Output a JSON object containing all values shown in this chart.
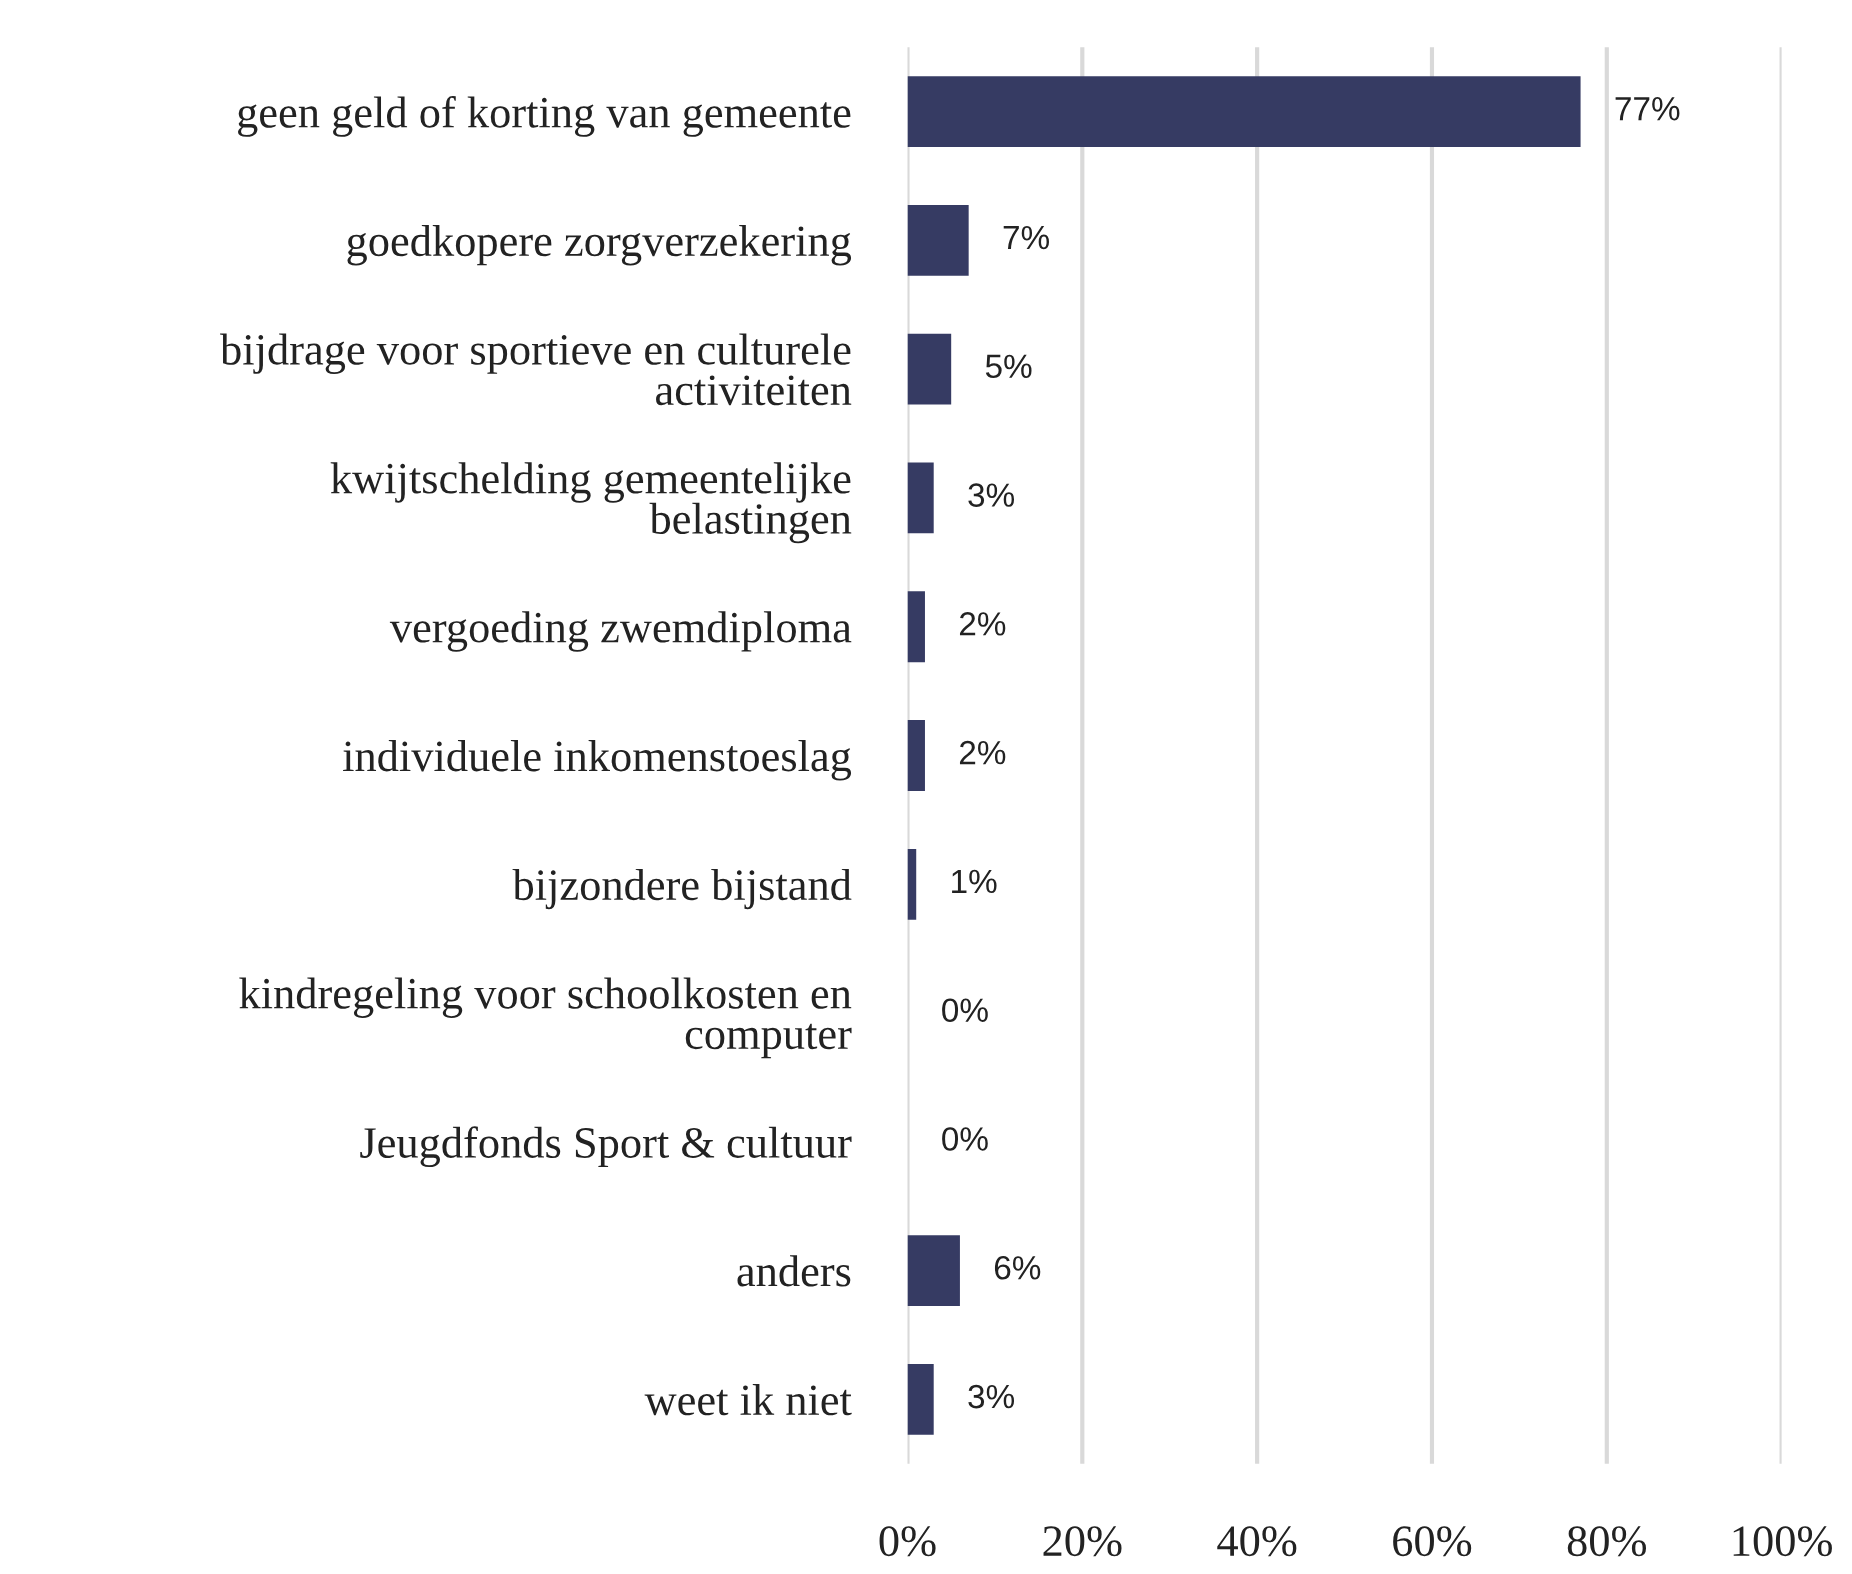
{
  "chart_data": {
    "type": "bar",
    "orientation": "horizontal",
    "categories": [
      "geen geld of korting van gemeente",
      "goedkopere zorgverzekering",
      "bijdrage voor sportieve en culturele\nactiviteiten",
      "kwijtschelding gemeentelijke\nbelastingen",
      "vergoeding zwemdiploma",
      "individuele inkomenstoeslag",
      "bijzondere bijstand",
      "kindregeling voor schoolkosten en\ncomputer",
      "Jeugdfonds Sport & cultuur",
      "anders",
      "weet ik niet"
    ],
    "values": [
      77,
      7,
      5,
      3,
      2,
      2,
      1,
      0,
      0,
      6,
      3
    ],
    "value_labels": [
      "77%",
      "7%",
      "5%",
      "3%",
      "2%",
      "2%",
      "1%",
      "0%",
      "0%",
      "6%",
      "3%"
    ],
    "color": "#363b63",
    "xlim": [
      0,
      100
    ],
    "xticks": [
      {
        "value": 0,
        "label": "0%"
      },
      {
        "value": 20,
        "label": "20%"
      },
      {
        "value": 40,
        "label": "40%"
      },
      {
        "value": 60,
        "label": "60%"
      },
      {
        "value": 80,
        "label": "80%"
      },
      {
        "value": 100,
        "label": "100%"
      }
    ],
    "grid": "x"
  }
}
